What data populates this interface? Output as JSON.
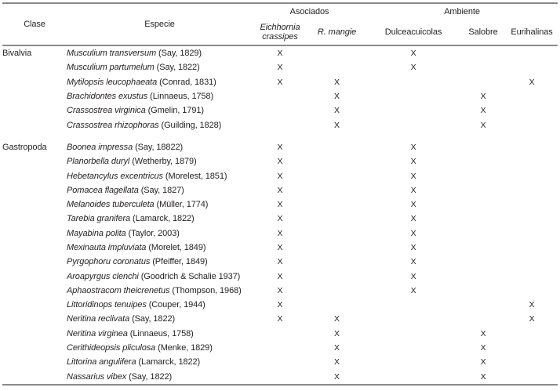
{
  "colors": {
    "background": "#ffffff",
    "text": "#231f20",
    "rule": "#8a8a8a"
  },
  "table": {
    "mark_symbol": "X",
    "header": {
      "group_asociados": "Asociados",
      "group_ambiente": "Ambiente",
      "clase": "Clase",
      "especie": "Especie",
      "col_eichhornia_line1": "Eichhornia",
      "col_eichhornia_line2": "crassipes",
      "col_r_mangie": "R. mangie",
      "col_dulceacuicolas": "Dulceacuicolas",
      "col_salobre": "Salobre",
      "col_eurihalinas": "Eurihalinas"
    },
    "mark_columns": [
      "Eichhornia crassipes",
      "R. mangie",
      "Dulceacuicolas",
      "Salobre",
      "Eurihalinas"
    ],
    "groups": [
      {
        "clase": "Bivalvia",
        "rows": [
          {
            "binomial": "Musculium transversum",
            "authority": "(Say, 1829)",
            "marks": [
              "X",
              "",
              "X",
              "",
              ""
            ]
          },
          {
            "binomial": "Musculium partumelum",
            "authority": "(Say, 1822)",
            "marks": [
              "X",
              "",
              "X",
              "",
              ""
            ]
          },
          {
            "binomial": "Mytilopsis leucophaeata",
            "authority": "(Conrad, 1831)",
            "marks": [
              "X",
              "X",
              "",
              "",
              "X"
            ]
          },
          {
            "binomial": "Brachidontes exustus",
            "authority": "(Linnaeus, 1758)",
            "marks": [
              "",
              "X",
              "",
              "X",
              ""
            ]
          },
          {
            "binomial": "Crassostrea virginica",
            "authority": "(Gmelin, 1791)",
            "marks": [
              "",
              "X",
              "",
              "X",
              ""
            ]
          },
          {
            "binomial": "Crassostrea rhizophoras",
            "authority": "(Guilding, 1828)",
            "marks": [
              "",
              "X",
              "",
              "X",
              ""
            ]
          }
        ]
      },
      {
        "clase": "Gastropoda",
        "rows": [
          {
            "binomial": "Boonea impressa",
            "authority": "(Say, 18822)",
            "marks": [
              "X",
              "",
              "X",
              "",
              ""
            ]
          },
          {
            "binomial": "Planorbella duryl",
            "authority": "(Wetherby, 1879)",
            "marks": [
              "X",
              "",
              "X",
              "",
              ""
            ]
          },
          {
            "binomial": "Hebetancylus excentricus",
            "authority": "(Morelest, 1851)",
            "marks": [
              "X",
              "",
              "X",
              "",
              ""
            ]
          },
          {
            "binomial": "Pomacea flagellata",
            "authority": "(Say, 1827)",
            "marks": [
              "X",
              "",
              "X",
              "",
              ""
            ]
          },
          {
            "binomial": "Melanoides tuberculeta",
            "authority": "(Müller, 1774)",
            "marks": [
              "X",
              "",
              "X",
              "",
              ""
            ]
          },
          {
            "binomial": "Tarebia granifera",
            "authority": "(Lamarck, 1822)",
            "marks": [
              "X",
              "",
              "X",
              "",
              ""
            ]
          },
          {
            "binomial": "Mayabina polita",
            "authority": "(Taylor, 2003)",
            "marks": [
              "X",
              "",
              "X",
              "",
              ""
            ]
          },
          {
            "binomial": "Mexinauta impluviata",
            "authority": "(Morelet, 1849)",
            "marks": [
              "X",
              "",
              "X",
              "",
              ""
            ]
          },
          {
            "binomial": "Pyrgophoru coronatus",
            "authority": "(Pfeiffer, 1849)",
            "marks": [
              "X",
              "",
              "X",
              "",
              ""
            ]
          },
          {
            "binomial": "Aroapyrgus clenchi",
            "authority": "(Goodrich & Schalie 1937)",
            "marks": [
              "X",
              "",
              "X",
              "",
              ""
            ]
          },
          {
            "binomial": "Aphaostracom theicrenetus",
            "authority": "(Thompson, 1968)",
            "marks": [
              "X",
              "",
              "X",
              "",
              ""
            ]
          },
          {
            "binomial": "Littoridinops tenuipes",
            "authority": "(Couper, 1944)",
            "marks": [
              "X",
              "",
              "",
              "",
              "X"
            ]
          },
          {
            "binomial": "Neritina reclivata",
            "authority": "(Say, 1822)",
            "marks": [
              "X",
              "X",
              "",
              "",
              "X"
            ]
          },
          {
            "binomial": "Neritina virginea",
            "authority": "(Linnaeus, 1758)",
            "marks": [
              "",
              "X",
              "",
              "X",
              ""
            ]
          },
          {
            "binomial": "Cerithideopsis pliculosa",
            "authority": "(Menke, 1829)",
            "marks": [
              "",
              "X",
              "",
              "X",
              ""
            ]
          },
          {
            "binomial": "Littorina angulifera",
            "authority": "(Lamarck, 1822)",
            "marks": [
              "",
              "X",
              "",
              "X",
              ""
            ]
          },
          {
            "binomial": "Nassarius vibex",
            "authority": "(Say, 1822)",
            "marks": [
              "",
              "X",
              "",
              "X",
              ""
            ]
          }
        ]
      }
    ]
  }
}
